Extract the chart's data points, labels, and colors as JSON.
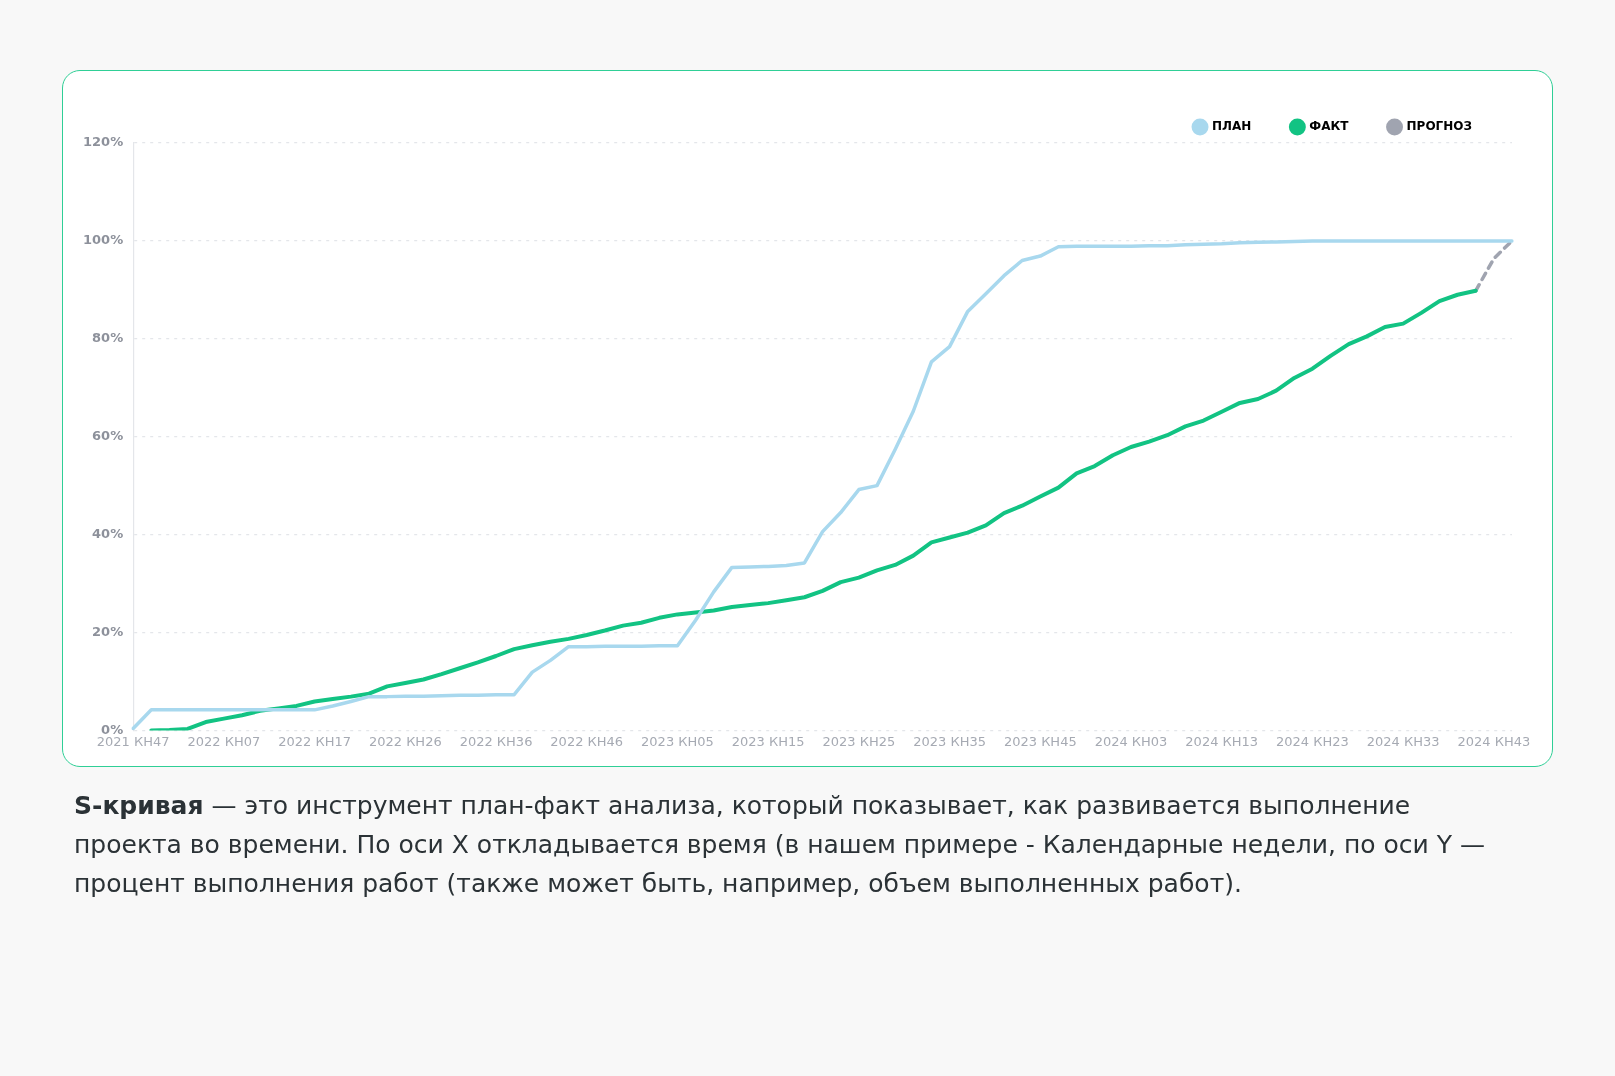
{
  "chart_data": {
    "type": "line",
    "categories": [
      "2021 КН47",
      null,
      null,
      null,
      null,
      "2022 КН07",
      null,
      null,
      null,
      null,
      "2022 КН17",
      null,
      null,
      null,
      null,
      "2022 КН26",
      null,
      null,
      null,
      null,
      "2022 КН36",
      null,
      null,
      null,
      null,
      "2022 КН46",
      null,
      null,
      null,
      null,
      "2023 КН05",
      null,
      null,
      null,
      null,
      "2023 КН15",
      null,
      null,
      null,
      null,
      "2023 КН25",
      null,
      null,
      null,
      null,
      "2023 КН35",
      null,
      null,
      null,
      null,
      "2023 КН45",
      null,
      null,
      null,
      null,
      "2024 КН03",
      null,
      null,
      null,
      null,
      "2024 КН13",
      null,
      null,
      null,
      null,
      "2024 КН23",
      null,
      null,
      null,
      null,
      "2024 КН33",
      null,
      null,
      null,
      null,
      "2024 КН43",
      null
    ],
    "ylim": [
      0,
      120
    ],
    "yticks": [
      {
        "value": 0,
        "label": "0%"
      },
      {
        "value": 20,
        "label": "20%"
      },
      {
        "value": 40,
        "label": "40%"
      },
      {
        "value": 60,
        "label": "60%"
      },
      {
        "value": 80,
        "label": "80%"
      },
      {
        "value": 100,
        "label": "100%"
      },
      {
        "value": 120,
        "label": "120%"
      }
    ],
    "grid": "y",
    "legend": "top right",
    "marker": "none",
    "series": [
      {
        "name": "ПЛАН",
        "color": "#a8d8ee",
        "line_style": "solid",
        "values": [
          0.4,
          4.2,
          4.2,
          4.2,
          4.2,
          4.2,
          4.2,
          4.2,
          4.2,
          4.2,
          4.2,
          5.0,
          5.9,
          6.9,
          6.9,
          7.0,
          7.0,
          7.1,
          7.2,
          7.2,
          7.3,
          7.3,
          11.9,
          14.3,
          17.1,
          17.1,
          17.2,
          17.2,
          17.2,
          17.3,
          17.3,
          22.5,
          28.3,
          33.3,
          33.4,
          33.5,
          33.7,
          34.2,
          40.6,
          44.5,
          49.2,
          50.0,
          57.4,
          65.2,
          75.3,
          78.4,
          85.6,
          89.2,
          92.9,
          96.0,
          96.9,
          98.8,
          98.9,
          98.9,
          98.9,
          98.9,
          99.0,
          99.0,
          99.2,
          99.3,
          99.4,
          99.6,
          99.7,
          99.8,
          99.9,
          100,
          100,
          100,
          100,
          100,
          100,
          100,
          100,
          100,
          100,
          100,
          100
        ]
      },
      {
        "name": "ФАКТ",
        "color": "#12c383",
        "line_style": "solid",
        "values": [
          null,
          0,
          0.1,
          0.3,
          1.7,
          2.4,
          3.1,
          4.0,
          4.5,
          5.0,
          5.9,
          6.4,
          6.9,
          7.5,
          9.0,
          9.7,
          10.4,
          11.5,
          12.7,
          13.9,
          15.2,
          16.6,
          17.4,
          18.1,
          18.7,
          19.5,
          20.4,
          21.4,
          22.0,
          23.0,
          23.7,
          24.1,
          24.5,
          25.2,
          25.6,
          26.0,
          26.6,
          27.2,
          28.5,
          30.3,
          31.2,
          32.7,
          33.8,
          35.7,
          38.4,
          39.4,
          40.4,
          41.9,
          44.4,
          45.9,
          47.8,
          49.6,
          52.5,
          54.0,
          56.2,
          57.9,
          59.0,
          60.3,
          62.1,
          63.3,
          65.1,
          66.9,
          67.7,
          69.4,
          72.0,
          73.9,
          76.5,
          78.9,
          80.5,
          82.4,
          83.1,
          85.3,
          87.7,
          89.0,
          89.8,
          null,
          null
        ]
      },
      {
        "name": "ПРОГНОЗ",
        "color": "#a0a4b0",
        "line_style": "dashed",
        "values": [
          null,
          null,
          null,
          null,
          null,
          null,
          null,
          null,
          null,
          null,
          null,
          null,
          null,
          null,
          null,
          null,
          null,
          null,
          null,
          null,
          null,
          null,
          null,
          null,
          null,
          null,
          null,
          null,
          null,
          null,
          null,
          null,
          null,
          null,
          null,
          null,
          null,
          null,
          null,
          null,
          null,
          null,
          null,
          null,
          null,
          null,
          null,
          null,
          null,
          null,
          null,
          null,
          null,
          null,
          null,
          null,
          null,
          null,
          null,
          null,
          null,
          null,
          null,
          null,
          null,
          null,
          null,
          null,
          null,
          null,
          null,
          null,
          null,
          null,
          89.8,
          96.4,
          100
        ]
      }
    ],
    "annotations": [
      "S-кривая",
      "— это инструмент план-факт анализа, который показывает, как развивается выполнение проекта во времени. По оси X откладывается время (в нашем примере - Календарные недели, по оси Y — процент выполнения работ (также может быть, например, объем выполненных работ)."
    ]
  }
}
